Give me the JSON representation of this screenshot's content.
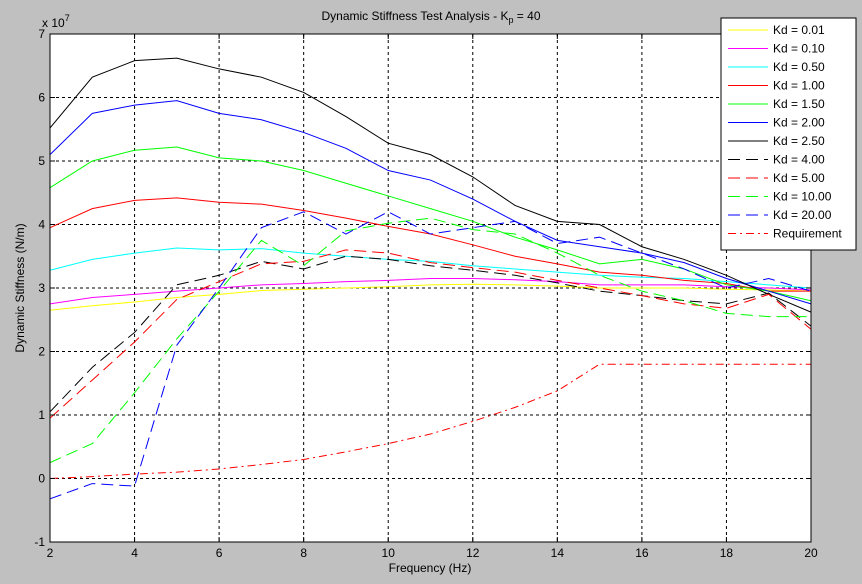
{
  "chart_data": {
    "type": "line",
    "title_main": "Dynamic Stiffness Test Analysis - K",
    "title_sub": "p",
    "title_tail": " = 40",
    "xlabel": "Frequency (Hz)",
    "ylabel": "Dynamic Stiffness (N/m)",
    "y_multiplier_base": "x 10",
    "y_multiplier_exp": "7",
    "xlim": [
      2,
      20
    ],
    "ylim": [
      -1,
      7
    ],
    "x_ticks": [
      2,
      4,
      6,
      8,
      10,
      12,
      14,
      16,
      18,
      20
    ],
    "y_ticks": [
      -1,
      0,
      1,
      2,
      3,
      4,
      5,
      6,
      7
    ],
    "x_tick_labels": [
      "2",
      "4",
      "6",
      "8",
      "10",
      "12",
      "14",
      "16",
      "18",
      "20"
    ],
    "y_tick_labels": [
      "-1",
      "0",
      "1",
      "2",
      "3",
      "4",
      "5",
      "6",
      "7"
    ],
    "grid": true,
    "legend_position": "top-right",
    "x": [
      2,
      3,
      4,
      5,
      6,
      7,
      8,
      9,
      10,
      11,
      12,
      13,
      14,
      15,
      16,
      17,
      18,
      19,
      20
    ],
    "series": [
      {
        "name": "Kd = 0.01",
        "color": "#ffff00",
        "dash": "solid",
        "values": [
          2.65,
          2.72,
          2.78,
          2.85,
          2.9,
          2.96,
          2.98,
          3.0,
          3.02,
          3.05,
          3.06,
          3.05,
          3.03,
          3.0,
          3.0,
          3.0,
          2.98,
          2.97,
          2.95
        ]
      },
      {
        "name": "Kd = 0.10",
        "color": "#ff00ff",
        "dash": "solid",
        "values": [
          2.75,
          2.85,
          2.9,
          2.95,
          3.0,
          3.05,
          3.07,
          3.1,
          3.12,
          3.15,
          3.15,
          3.13,
          3.1,
          3.05,
          3.05,
          3.05,
          3.02,
          3.0,
          2.97
        ]
      },
      {
        "name": "Kd = 0.50",
        "color": "#00ffff",
        "dash": "solid",
        "values": [
          3.28,
          3.45,
          3.55,
          3.63,
          3.6,
          3.62,
          3.55,
          3.5,
          3.45,
          3.42,
          3.35,
          3.3,
          3.25,
          3.2,
          3.17,
          3.15,
          3.1,
          3.05,
          3.0
        ]
      },
      {
        "name": "Kd = 1.00",
        "color": "#ff0000",
        "dash": "solid",
        "values": [
          3.95,
          4.25,
          4.38,
          4.42,
          4.35,
          4.32,
          4.22,
          4.1,
          3.97,
          3.85,
          3.68,
          3.5,
          3.38,
          3.25,
          3.2,
          3.12,
          3.07,
          2.95,
          2.95
        ]
      },
      {
        "name": "Kd = 1.50",
        "color": "#00ff00",
        "dash": "solid",
        "values": [
          4.58,
          5.0,
          5.17,
          5.22,
          5.05,
          5.0,
          4.85,
          4.65,
          4.45,
          4.25,
          4.05,
          3.8,
          3.6,
          3.38,
          3.45,
          3.3,
          3.05,
          2.95,
          2.8
        ]
      },
      {
        "name": "Kd = 2.00",
        "color": "#0000ff",
        "dash": "solid",
        "values": [
          5.1,
          5.75,
          5.88,
          5.95,
          5.75,
          5.65,
          5.45,
          5.2,
          4.85,
          4.7,
          4.4,
          4.05,
          3.75,
          3.65,
          3.55,
          3.4,
          3.15,
          2.95,
          2.75
        ]
      },
      {
        "name": "Kd = 2.50",
        "color": "#000000",
        "dash": "solid",
        "values": [
          5.52,
          6.32,
          6.58,
          6.62,
          6.45,
          6.32,
          6.08,
          5.7,
          5.28,
          5.1,
          4.75,
          4.3,
          4.05,
          4.0,
          3.65,
          3.45,
          3.2,
          2.9,
          2.62
        ]
      },
      {
        "name": "Kd = 4.00",
        "color": "#000000",
        "dash": "dashed",
        "values": [
          1.05,
          1.75,
          2.3,
          3.05,
          3.2,
          3.42,
          3.3,
          3.5,
          3.45,
          3.35,
          3.28,
          3.2,
          3.08,
          2.95,
          2.88,
          2.8,
          2.75,
          2.92,
          2.4
        ]
      },
      {
        "name": "Kd = 5.00",
        "color": "#ff0000",
        "dash": "dashed",
        "values": [
          0.95,
          1.55,
          2.15,
          2.82,
          3.1,
          3.38,
          3.42,
          3.6,
          3.55,
          3.4,
          3.32,
          3.25,
          3.12,
          3.0,
          2.88,
          2.75,
          2.68,
          2.9,
          2.35
        ]
      },
      {
        "name": "Kd = 10.00",
        "color": "#00ff00",
        "dash": "dashed",
        "values": [
          0.25,
          0.55,
          1.35,
          2.2,
          2.95,
          3.75,
          3.35,
          3.9,
          4.02,
          4.1,
          3.92,
          3.85,
          3.55,
          3.2,
          2.95,
          2.8,
          2.6,
          2.55,
          2.55
        ]
      },
      {
        "name": "Kd = 20.00",
        "color": "#0000ff",
        "dash": "dashed",
        "values": [
          -0.32,
          -0.08,
          -0.12,
          2.1,
          3.0,
          3.95,
          4.2,
          3.85,
          4.2,
          3.85,
          3.95,
          4.05,
          3.7,
          3.8,
          3.55,
          3.3,
          3.0,
          3.15,
          2.95
        ]
      },
      {
        "name": "Requirement",
        "color": "#ff0000",
        "dash": "dashdot",
        "values": [
          0.0,
          0.03,
          0.07,
          0.1,
          0.15,
          0.22,
          0.3,
          0.42,
          0.55,
          0.7,
          0.9,
          1.12,
          1.38,
          1.8,
          1.8,
          1.8,
          1.8,
          1.8,
          1.8
        ]
      }
    ]
  }
}
